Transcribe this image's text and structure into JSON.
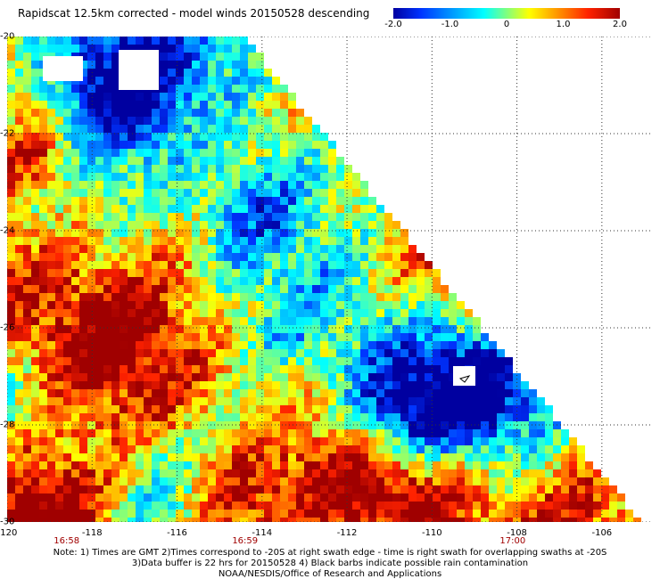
{
  "title": "Rapidscat 12.5km corrected - model winds 20150528 descending",
  "colorbar": {
    "tick_labels": [
      "-2.0",
      "-1.0",
      "0",
      "1.0",
      "2.0"
    ],
    "tick_values": [
      -2.0,
      -1.0,
      0,
      1.0,
      2.0
    ],
    "colors": [
      "#0000a0",
      "#0033ff",
      "#00a8ff",
      "#00ffff",
      "#7fff7f",
      "#ffff00",
      "#ff9900",
      "#ff2200",
      "#a00000"
    ]
  },
  "map": {
    "lon_labels": [
      "-120",
      "-118",
      "-116",
      "-114",
      "-112",
      "-110",
      "-108",
      "-106"
    ],
    "lon_values": [
      -120,
      -118,
      -116,
      -114,
      -112,
      -110,
      -108,
      -106
    ],
    "lon_range": [
      -120,
      -104.8
    ],
    "lat_labels": [
      "-20",
      "-22",
      "-24",
      "-26",
      "-28",
      "-30"
    ],
    "lat_values": [
      -20,
      -22,
      -24,
      -26,
      -28,
      -30
    ],
    "lat_range": [
      -20,
      -30
    ],
    "time_labels": [
      "16:58",
      "16:59",
      "17:00"
    ],
    "time_lons": [
      -118.6,
      -114.4,
      -108.1
    ]
  },
  "notes": {
    "line1": "Note: 1) Times are GMT 2)Times correspond to -20S at right swath edge - time is right swath for overlapping swaths at -20S",
    "line2": "3)Data buffer is 22 hrs for 20150528 4) Black barbs indicate possible rain contamination",
    "line3": "NOAA/NESDIS/Office of Research and Applications"
  }
}
